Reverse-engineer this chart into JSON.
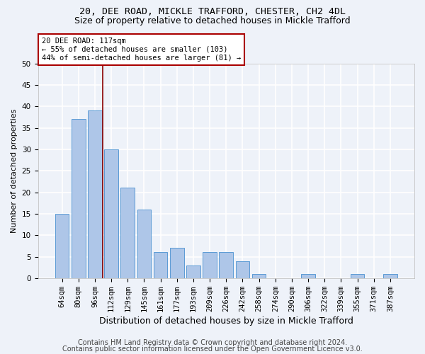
{
  "title1": "20, DEE ROAD, MICKLE TRAFFORD, CHESTER, CH2 4DL",
  "title2": "Size of property relative to detached houses in Mickle Trafford",
  "xlabel": "Distribution of detached houses by size in Mickle Trafford",
  "ylabel": "Number of detached properties",
  "categories": [
    "64sqm",
    "80sqm",
    "96sqm",
    "112sqm",
    "129sqm",
    "145sqm",
    "161sqm",
    "177sqm",
    "193sqm",
    "209sqm",
    "226sqm",
    "242sqm",
    "258sqm",
    "274sqm",
    "290sqm",
    "306sqm",
    "322sqm",
    "339sqm",
    "355sqm",
    "371sqm",
    "387sqm"
  ],
  "values": [
    15,
    37,
    39,
    30,
    21,
    16,
    6,
    7,
    3,
    6,
    6,
    4,
    1,
    0,
    0,
    1,
    0,
    0,
    1,
    0,
    1
  ],
  "bar_color": "#aec6e8",
  "bar_edgecolor": "#5b9bd5",
  "vline_x": 2.5,
  "vline_color": "#8b0000",
  "annotation_text": "20 DEE ROAD: 117sqm\n← 55% of detached houses are smaller (103)\n44% of semi-detached houses are larger (81) →",
  "annotation_box_color": "#ffffff",
  "annotation_box_edgecolor": "#aa0000",
  "ylim": [
    0,
    50
  ],
  "yticks": [
    0,
    5,
    10,
    15,
    20,
    25,
    30,
    35,
    40,
    45,
    50
  ],
  "footer1": "Contains HM Land Registry data © Crown copyright and database right 2024.",
  "footer2": "Contains public sector information licensed under the Open Government Licence v3.0.",
  "background_color": "#eef2f9",
  "grid_color": "#ffffff",
  "title1_fontsize": 9.5,
  "title2_fontsize": 9,
  "xlabel_fontsize": 9,
  "ylabel_fontsize": 8,
  "tick_fontsize": 7.5,
  "footer_fontsize": 7
}
